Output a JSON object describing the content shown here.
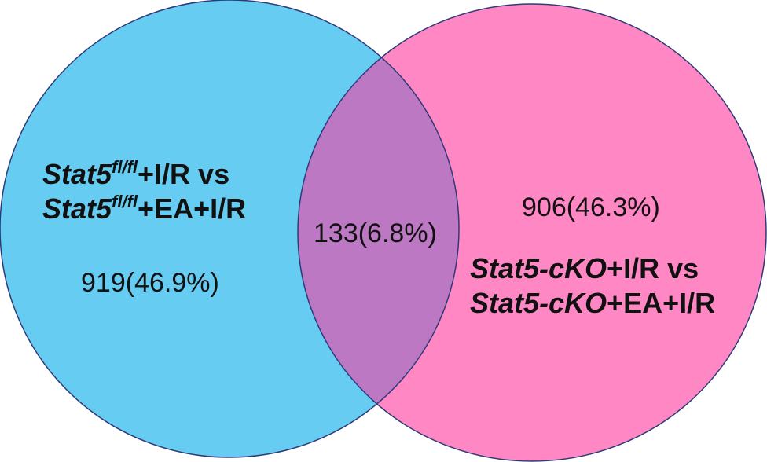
{
  "colors": {
    "set_a_fill": "#66CCF2",
    "set_b_fill": "#FF88C4",
    "overlap_fill": "#BD78C4",
    "outline": "#2E3A78"
  },
  "sets": {
    "a": {
      "line1": {
        "gene": "Stat5",
        "sup": "fl/fl",
        "rest": "+I/R vs"
      },
      "line2": {
        "gene": "Stat5",
        "sup": "fl/fl",
        "rest": "+EA+I/R"
      },
      "count": "919(46.9%)"
    },
    "b": {
      "line1": {
        "gene": "Stat5-cKO",
        "rest": "+I/R vs"
      },
      "line2": {
        "gene": "Stat5-cKO",
        "rest": "+EA+I/R"
      },
      "count": "906(46.3%)"
    },
    "overlap": {
      "count": "133(6.8%)"
    }
  }
}
